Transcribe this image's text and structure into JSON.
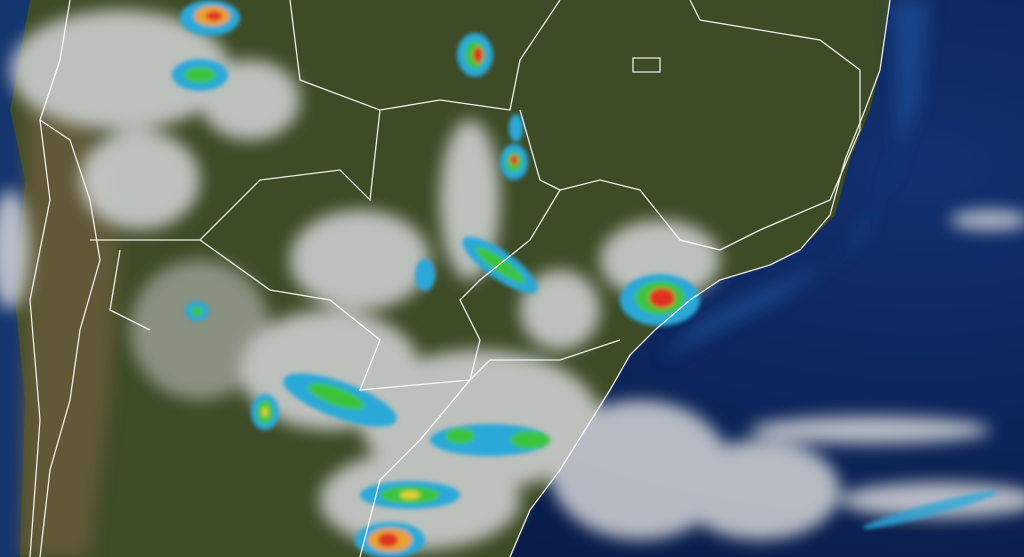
{
  "map": {
    "type": "satellite-weather-composite",
    "colors": {
      "ocean": "#0d2456",
      "ocean_light": "#1f4f9a",
      "land": "#3b4a26",
      "land_dry": "#6a5a3a",
      "cloud": "#d8dadc",
      "border": "#ffffff",
      "precip_light": "#2aa8d8",
      "precip_moderate": "#3cc43c",
      "precip_heavy": "#e8d030",
      "precip_intense": "#e03020"
    }
  }
}
